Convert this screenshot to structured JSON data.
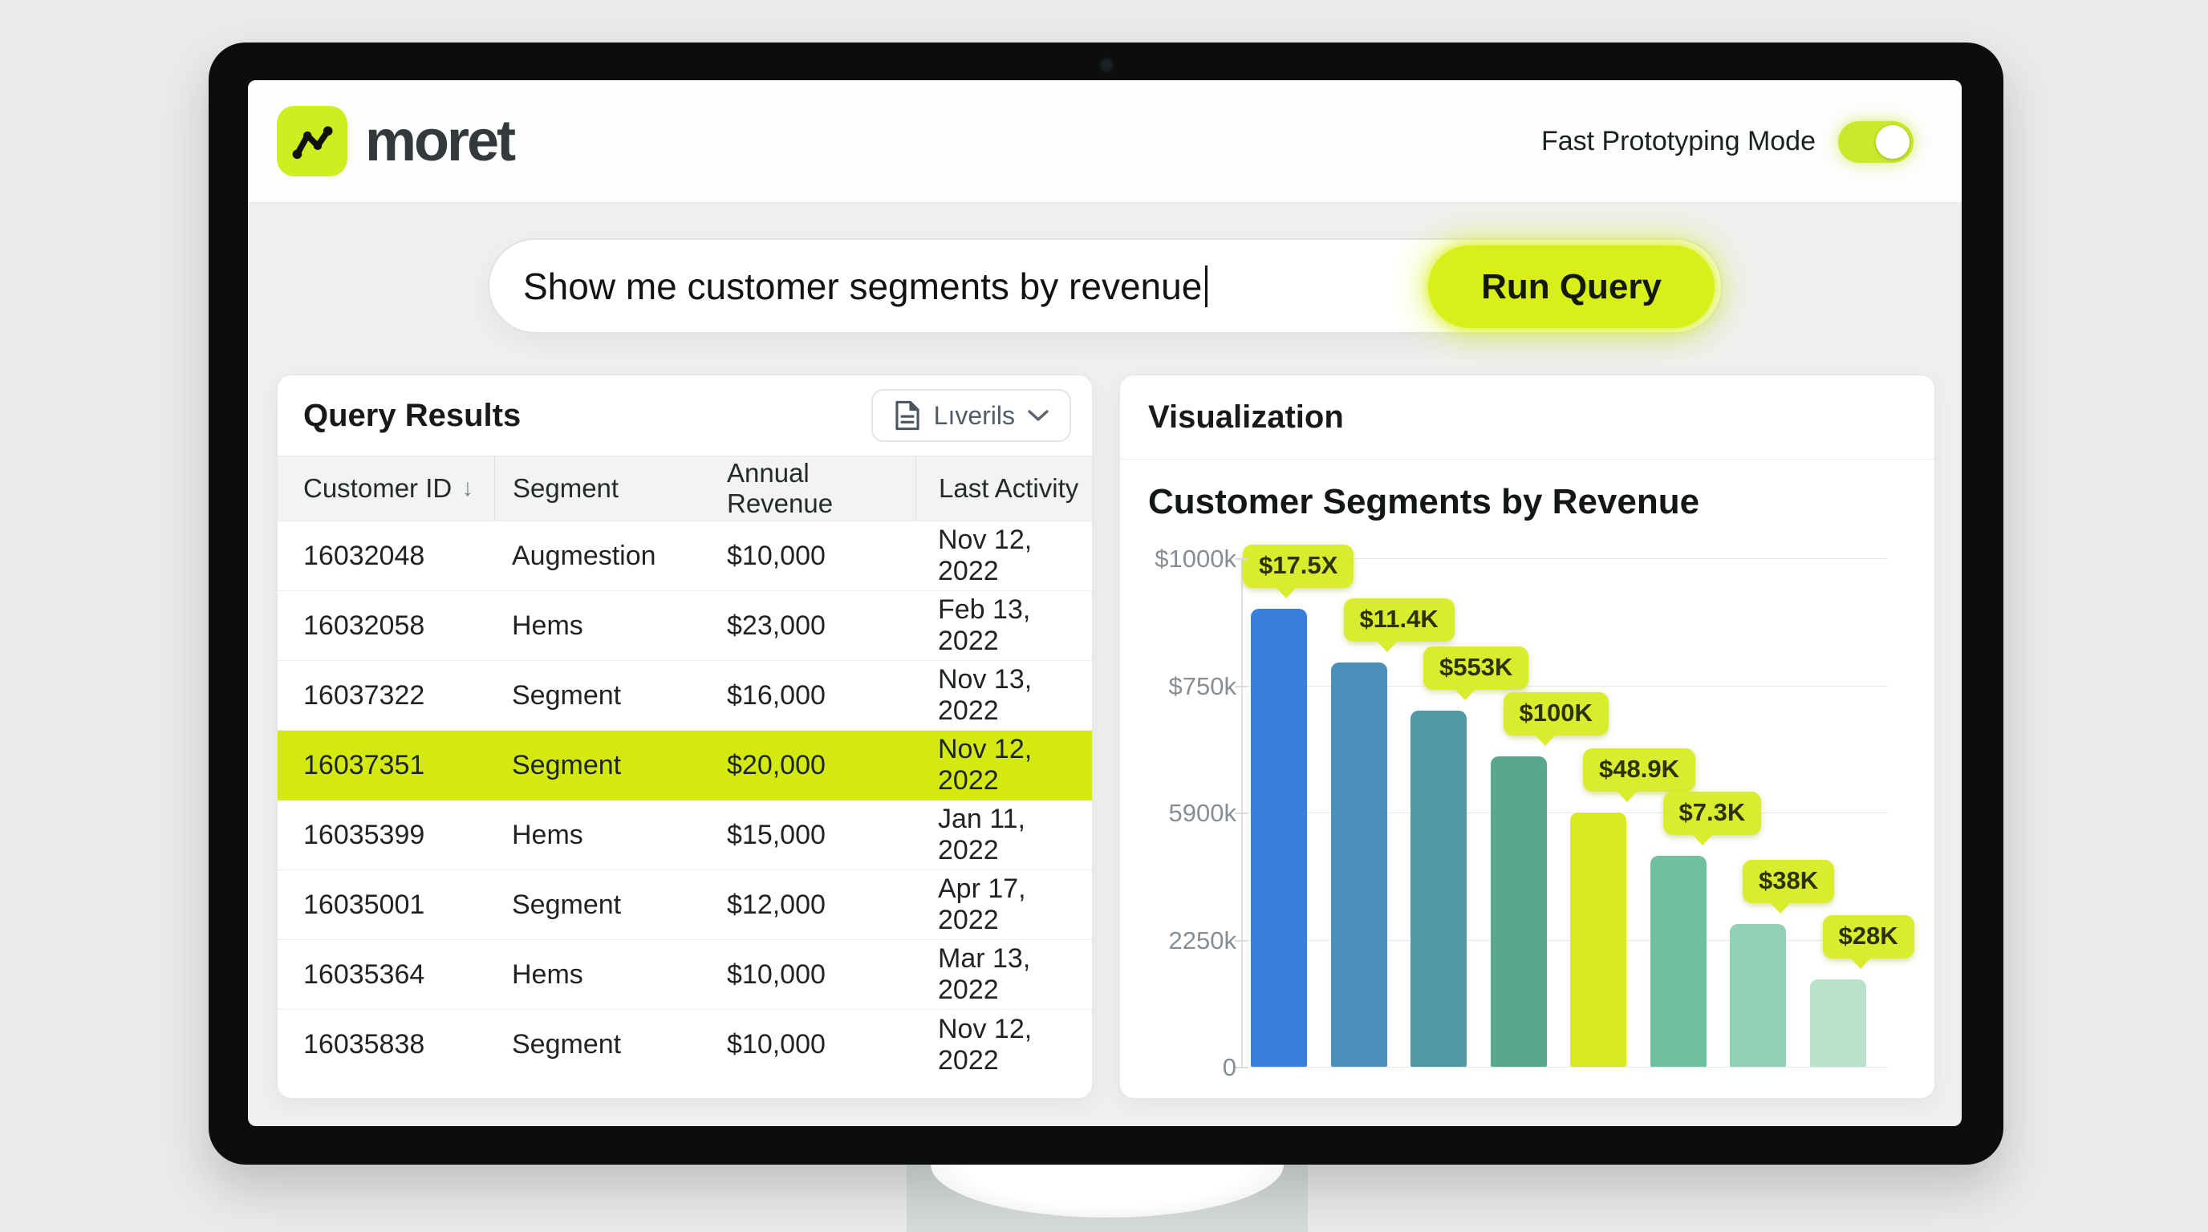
{
  "header": {
    "brand": "moret",
    "mode_label": "Fast Prototyping Mode",
    "toggle_state": "on"
  },
  "query": {
    "value": "Show me customer segments by revenue",
    "run_label": "Run Query"
  },
  "results": {
    "title": "Query Results",
    "export_button": "Lıverils",
    "sort_indicator": "↓",
    "columns": [
      "Customer ID",
      "Segment",
      "Annual Revenue",
      "Last Activity"
    ],
    "rows": [
      [
        "16032048",
        "Augmestion",
        "$10,000",
        "Nov 12, 2022"
      ],
      [
        "16032058",
        "Hems",
        "$23,000",
        "Feb 13, 2022"
      ],
      [
        "16037322",
        "Segment",
        "$16,000",
        "Nov 13, 2022"
      ],
      [
        "16037351",
        "Segment",
        "$20,000",
        "Nov 12, 2022"
      ],
      [
        "16035399",
        "Hems",
        "$15,000",
        "Jan 11, 2022"
      ],
      [
        "16035001",
        "Segment",
        "$12,000",
        "Apr 17, 2022"
      ],
      [
        "16035364",
        "Hems",
        "$10,000",
        "Mar 13, 2022"
      ],
      [
        "16035838",
        "Segment",
        "$10,000",
        "Nov 12, 2022"
      ]
    ],
    "highlighted_row_index": 3
  },
  "viz": {
    "panel_title": "Visualization"
  },
  "chart_data": {
    "type": "bar",
    "title": "Customer Segments by Revenue",
    "labels": [
      "$17.5X",
      "$11.4K",
      "$553K",
      "$100K",
      "$48.9K",
      "$7.3K",
      "$38K",
      "$28K"
    ],
    "values": [
      900,
      795,
      700,
      610,
      500,
      415,
      280,
      172
    ],
    "ylim": [
      0,
      1000
    ],
    "y_ticks": [
      "$1000k",
      "$750k",
      "5900k",
      "2250k",
      "0"
    ],
    "bar_colors": [
      "#3b7edb",
      "#4a90bb",
      "#4f9aa5",
      "#57a88f",
      "#d8eb21",
      "#6fc09e",
      "#92d1b5",
      "#b9e2cb"
    ],
    "grid": true,
    "legend": false,
    "xlabel": "",
    "ylabel": ""
  },
  "colors": {
    "accent": "#d8ef19",
    "highlight_row": "#d4e90f",
    "tooltip": "#d9ec2e"
  }
}
